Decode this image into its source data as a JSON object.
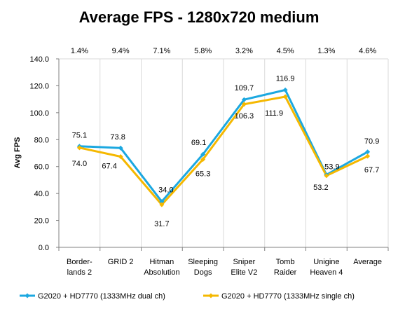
{
  "chart_data": {
    "type": "line",
    "title": "Average FPS - 1280x720 medium",
    "ylabel": "Avg FPS",
    "xlabel": "",
    "ylim": [
      0,
      140
    ],
    "yticks": [
      "0.0",
      "20.0",
      "40.0",
      "60.0",
      "80.0",
      "100.0",
      "120.0",
      "140.0"
    ],
    "grid": "vertical category lines",
    "legend_position": "bottom",
    "categories": [
      [
        "Border-",
        "lands 2"
      ],
      [
        "GRID 2"
      ],
      [
        "Hitman",
        "Absolution"
      ],
      [
        "Sleeping",
        "Dogs"
      ],
      [
        "Sniper",
        "Elite V2"
      ],
      [
        "Tomb",
        "Raider"
      ],
      [
        "Unigine",
        "Heaven 4"
      ],
      [
        "Average"
      ]
    ],
    "percent_labels": [
      "1.4%",
      "9.4%",
      "7.1%",
      "5.8%",
      "3.2%",
      "4.5%",
      "1.3%",
      "4.6%"
    ],
    "series": [
      {
        "name": "G2020 + HD7770 (1333MHz dual ch)",
        "color": "#1CA8E0",
        "values": [
          75.1,
          73.8,
          34.0,
          69.1,
          109.7,
          116.9,
          53.9,
          70.9
        ],
        "labels": [
          "75.1",
          "73.8",
          "34.0",
          "69.1",
          "109.7",
          "116.9",
          "53.9",
          "70.9"
        ]
      },
      {
        "name": "G2020 + HD7770 (1333MHz single ch)",
        "color": "#F5B800",
        "values": [
          74.0,
          67.4,
          31.7,
          65.3,
          106.3,
          111.9,
          53.2,
          67.7
        ],
        "labels": [
          "74.0",
          "67.4",
          "31.7",
          "65.3",
          "106.3",
          "111.9",
          "53.2",
          "67.7"
        ]
      }
    ]
  }
}
